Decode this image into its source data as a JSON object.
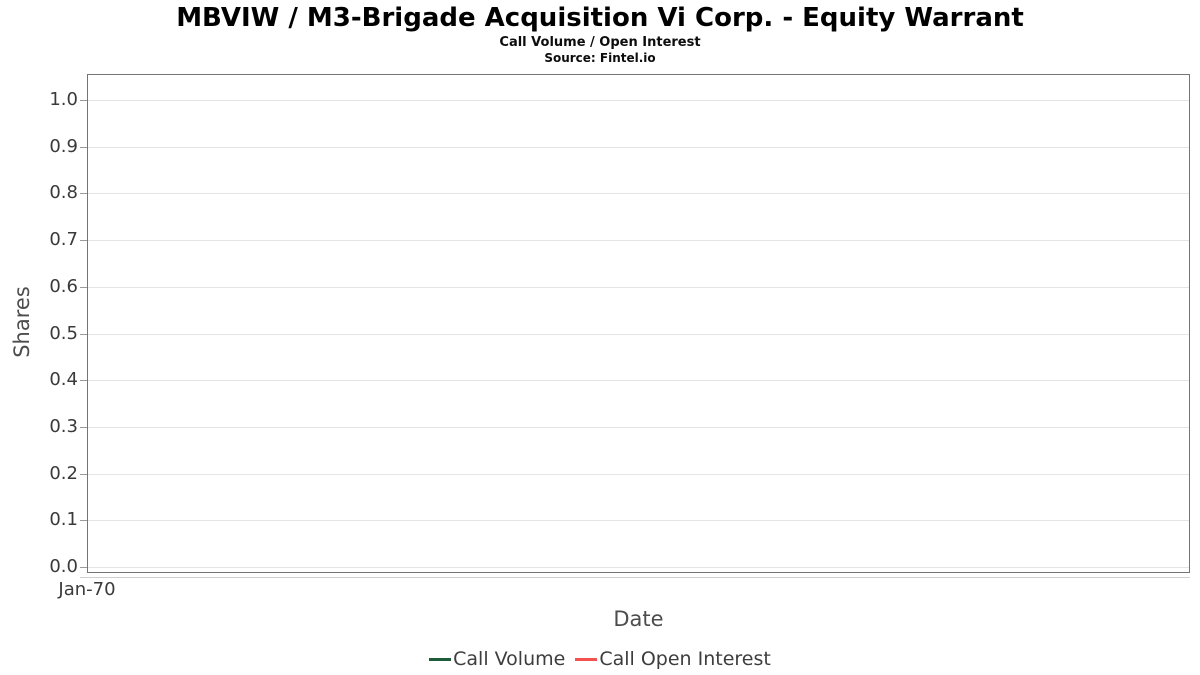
{
  "header": {
    "title": "MBVIW / M3-Brigade Acquisition Vi Corp. - Equity Warrant",
    "subtitle": "Call Volume / Open Interest",
    "source": "Source: Fintel.io"
  },
  "chart_data": {
    "type": "line",
    "title": "MBVIW / M3-Brigade Acquisition Vi Corp. - Equity Warrant",
    "subtitle": "Call Volume / Open Interest",
    "source": "Source: Fintel.io",
    "xlabel": "Date",
    "ylabel": "Shares",
    "ylim": [
      0.0,
      1.0
    ],
    "ytick_labels": [
      "0.0",
      "0.1",
      "0.2",
      "0.3",
      "0.4",
      "0.5",
      "0.6",
      "0.7",
      "0.8",
      "0.9",
      "1.0"
    ],
    "xtick_labels": [
      "Jan-70"
    ],
    "grid": "horizontal",
    "legend_position": "bottom-center",
    "plot_is_empty": true,
    "series": [
      {
        "name": "Call Volume",
        "color": "#1e5b38",
        "x": [],
        "values": []
      },
      {
        "name": "Call Open Interest",
        "color": "#f45250",
        "x": [],
        "values": []
      }
    ]
  }
}
